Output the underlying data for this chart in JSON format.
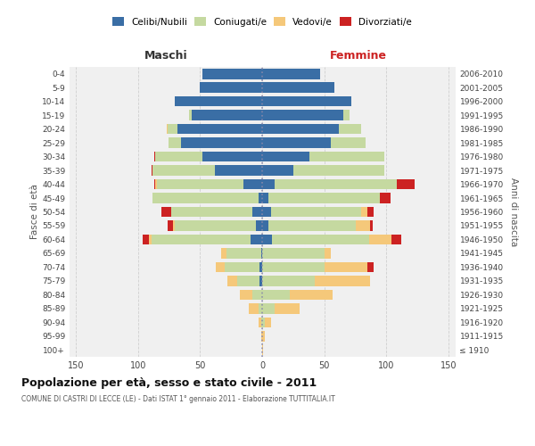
{
  "age_groups": [
    "100+",
    "95-99",
    "90-94",
    "85-89",
    "80-84",
    "75-79",
    "70-74",
    "65-69",
    "60-64",
    "55-59",
    "50-54",
    "45-49",
    "40-44",
    "35-39",
    "30-34",
    "25-29",
    "20-24",
    "15-19",
    "10-14",
    "5-9",
    "0-4"
  ],
  "birth_years": [
    "≤ 1910",
    "1911-1915",
    "1916-1920",
    "1921-1925",
    "1926-1930",
    "1931-1935",
    "1936-1940",
    "1941-1945",
    "1946-1950",
    "1951-1955",
    "1956-1960",
    "1961-1965",
    "1966-1970",
    "1971-1975",
    "1976-1980",
    "1981-1985",
    "1986-1990",
    "1991-1995",
    "1996-2000",
    "2001-2005",
    "2006-2010"
  ],
  "colors": {
    "celibi": "#3a6ea5",
    "coniugati": "#c5d9a0",
    "vedovi": "#f5c87a",
    "divorziati": "#cc2222"
  },
  "maschi_celibi": [
    0,
    0,
    0,
    0,
    0,
    2,
    2,
    1,
    9,
    5,
    8,
    3,
    15,
    38,
    48,
    65,
    68,
    57,
    70,
    50,
    48
  ],
  "maschi_coniugati": [
    0,
    0,
    1,
    3,
    8,
    18,
    28,
    28,
    80,
    65,
    65,
    85,
    70,
    50,
    38,
    10,
    8,
    2,
    0,
    0,
    0
  ],
  "maschi_vedovi": [
    0,
    1,
    2,
    8,
    10,
    8,
    7,
    4,
    2,
    2,
    0,
    0,
    1,
    0,
    0,
    0,
    1,
    0,
    0,
    0,
    0
  ],
  "maschi_divorziati": [
    0,
    0,
    0,
    0,
    0,
    0,
    0,
    0,
    5,
    4,
    8,
    0,
    1,
    1,
    1,
    0,
    0,
    0,
    0,
    0,
    0
  ],
  "femmine_celibi": [
    0,
    0,
    0,
    0,
    0,
    0,
    0,
    0,
    8,
    5,
    7,
    5,
    10,
    25,
    38,
    55,
    62,
    65,
    72,
    58,
    47
  ],
  "femmine_coniugati": [
    0,
    0,
    2,
    10,
    22,
    42,
    50,
    50,
    78,
    70,
    73,
    90,
    98,
    73,
    60,
    28,
    18,
    5,
    0,
    0,
    0
  ],
  "femmine_vedovi": [
    1,
    2,
    5,
    20,
    35,
    45,
    35,
    5,
    18,
    12,
    5,
    0,
    0,
    0,
    0,
    0,
    0,
    0,
    0,
    0,
    0
  ],
  "femmine_divorziati": [
    0,
    0,
    0,
    0,
    0,
    0,
    5,
    0,
    8,
    2,
    5,
    8,
    15,
    0,
    0,
    0,
    0,
    0,
    0,
    0,
    0
  ],
  "title": "Popolazione per età, sesso e stato civile - 2011",
  "subtitle": "COMUNE DI CASTRI DI LECCE (LE) - Dati ISTAT 1° gennaio 2011 - Elaborazione TUTTITALIA.IT",
  "xlabel_left": "Maschi",
  "xlabel_right": "Femmine",
  "ylabel_left": "Fasce di età",
  "ylabel_right": "Anni di nascita",
  "xlim": 155,
  "legend_labels": [
    "Celibi/Nubili",
    "Coniugati/e",
    "Vedovi/e",
    "Divorziati/e"
  ],
  "background_color": "#ffffff",
  "grid_color": "#cccccc",
  "ax_bg": "#f0f0f0"
}
